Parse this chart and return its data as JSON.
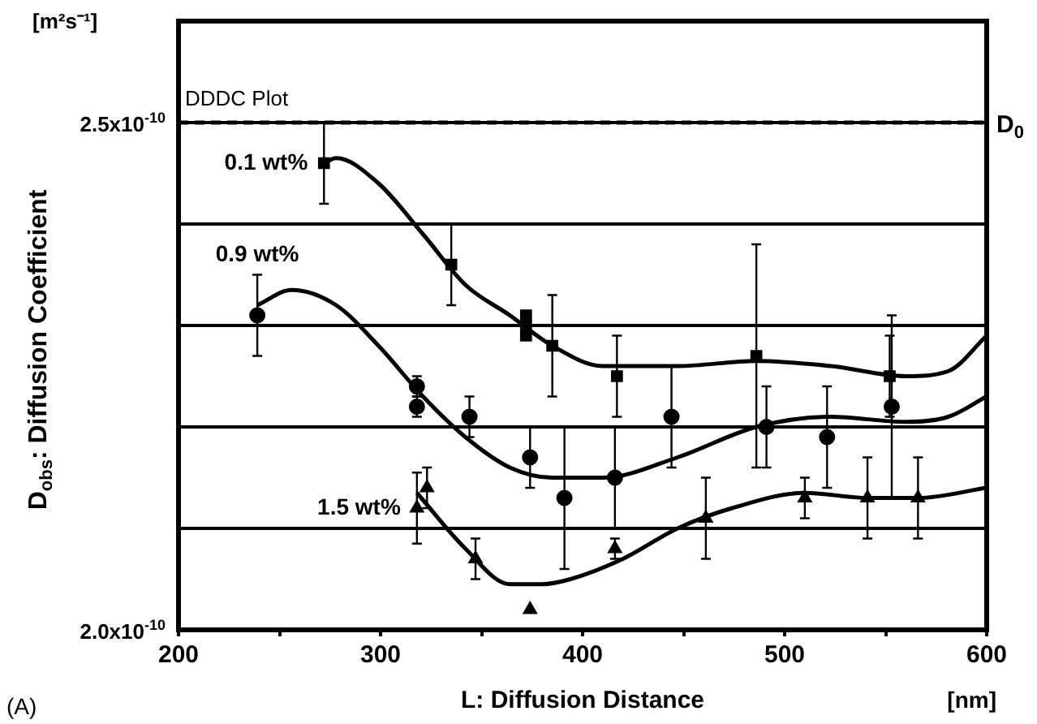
{
  "chart_data": {
    "type": "scatter",
    "xlabel": "L: Diffusion Distance",
    "ylabel": "D$_{obs}$: Diffusion Coefficient",
    "annotations": [
      "[m²s⁻¹]",
      "DDDC Plot",
      "(A)",
      "[nm]"
    ],
    "xlim": [
      200,
      600
    ],
    "ylim": [
      2e-10,
      2.6e-10
    ],
    "xticks": [
      200,
      {
        "value": 250,
        "label": null
      },
      300,
      {
        "value": 350,
        "label": null
      },
      400,
      {
        "value": 450,
        "label": null
      },
      500,
      {
        "value": 550,
        "label": null
      },
      600
    ],
    "yticks": [
      {
        "value": 2e-10,
        "label": "2.0x10$^{-10}$"
      },
      {
        "value": 2.1e-10,
        "label": null
      },
      {
        "value": 2.2e-10,
        "label": null
      },
      {
        "value": 2.3e-10,
        "label": null
      },
      {
        "value": 2.4e-10,
        "label": null
      },
      {
        "value": 2.5e-10,
        "label": "2.5x10$^{-10}$"
      }
    ],
    "grid": "y",
    "legend": false,
    "ref_lines": [
      {
        "axis": "y",
        "value": 2.5e-10,
        "label": "D$_{0}$",
        "line_style": "dashed",
        "color": "#000000"
      }
    ],
    "series": [
      {
        "name": "0.1 wt%",
        "marker": "square",
        "color": "#000000",
        "x": [
          272,
          335,
          372,
          372,
          372,
          385,
          417,
          486,
          552
        ],
        "values": [
          2.46e-10,
          2.36e-10,
          2.31e-10,
          2.3e-10,
          2.29e-10,
          2.28e-10,
          2.25e-10,
          2.27e-10,
          2.25e-10
        ],
        "errors": [
          4e-12,
          4e-12,
          null,
          null,
          null,
          5e-12,
          4e-12,
          1.1e-11,
          4e-12
        ]
      },
      {
        "name": "0.9 wt%",
        "marker": "circle",
        "color": "#000000",
        "x": [
          239,
          318,
          318,
          344,
          374,
          391,
          416,
          444,
          491,
          521,
          553
        ],
        "values": [
          2.31e-10,
          2.24e-10,
          2.22e-10,
          2.21e-10,
          2.17e-10,
          2.13e-10,
          2.15e-10,
          2.21e-10,
          2.2e-10,
          2.19e-10,
          2.22e-10
        ],
        "errors": [
          4e-12,
          1e-12,
          1e-12,
          2e-12,
          3e-12,
          7e-12,
          5e-12,
          5e-12,
          4e-12,
          5e-12,
          9e-12
        ]
      },
      {
        "name": "1.5 wt%",
        "marker": "triangle",
        "color": "#000000",
        "x": [
          318,
          323,
          347,
          374,
          416,
          461,
          510,
          541,
          566
        ],
        "values": [
          2.12e-10,
          2.14e-10,
          2.07e-10,
          2.02e-10,
          2.08e-10,
          2.11e-10,
          2.13e-10,
          2.13e-10,
          2.13e-10
        ],
        "errors": [
          3.5e-12,
          2e-12,
          2e-12,
          null,
          1e-12,
          4e-12,
          2e-12,
          4e-12,
          4e-12
        ]
      },
      {
        "type": "line",
        "marker": "none",
        "color": "#000000",
        "x": [
          272,
          278,
          299,
          321,
          342,
          364,
          385,
          410,
          447,
          486,
          523,
          560,
          581,
          600
        ],
        "values": [
          2.46e-10,
          2.465e-10,
          2.44e-10,
          2.39e-10,
          2.34e-10,
          2.31e-10,
          2.28e-10,
          2.26e-10,
          2.26e-10,
          2.265e-10,
          2.26e-10,
          2.25e-10,
          2.255e-10,
          2.29e-10
        ]
      },
      {
        "type": "line",
        "marker": "none",
        "color": "#000000",
        "x": [
          239,
          256,
          278,
          299,
          321,
          342,
          364,
          385,
          410,
          447,
          486,
          523,
          560,
          581,
          600
        ],
        "values": [
          2.32e-10,
          2.335e-10,
          2.32e-10,
          2.28e-10,
          2.23e-10,
          2.19e-10,
          2.16e-10,
          2.15e-10,
          2.15e-10,
          2.17e-10,
          2.2e-10,
          2.21e-10,
          2.205e-10,
          2.21e-10,
          2.23e-10
        ]
      },
      {
        "type": "line",
        "marker": "none",
        "color": "#000000",
        "x": [
          318,
          342,
          364,
          380,
          394,
          420,
          447,
          474,
          510,
          541,
          566,
          600
        ],
        "values": [
          2.135e-10,
          2.08e-10,
          2.045e-10,
          2.045e-10,
          2.05e-10,
          2.07e-10,
          2.1e-10,
          2.12e-10,
          2.135e-10,
          2.13e-10,
          2.13e-10,
          2.14e-10
        ]
      }
    ]
  }
}
